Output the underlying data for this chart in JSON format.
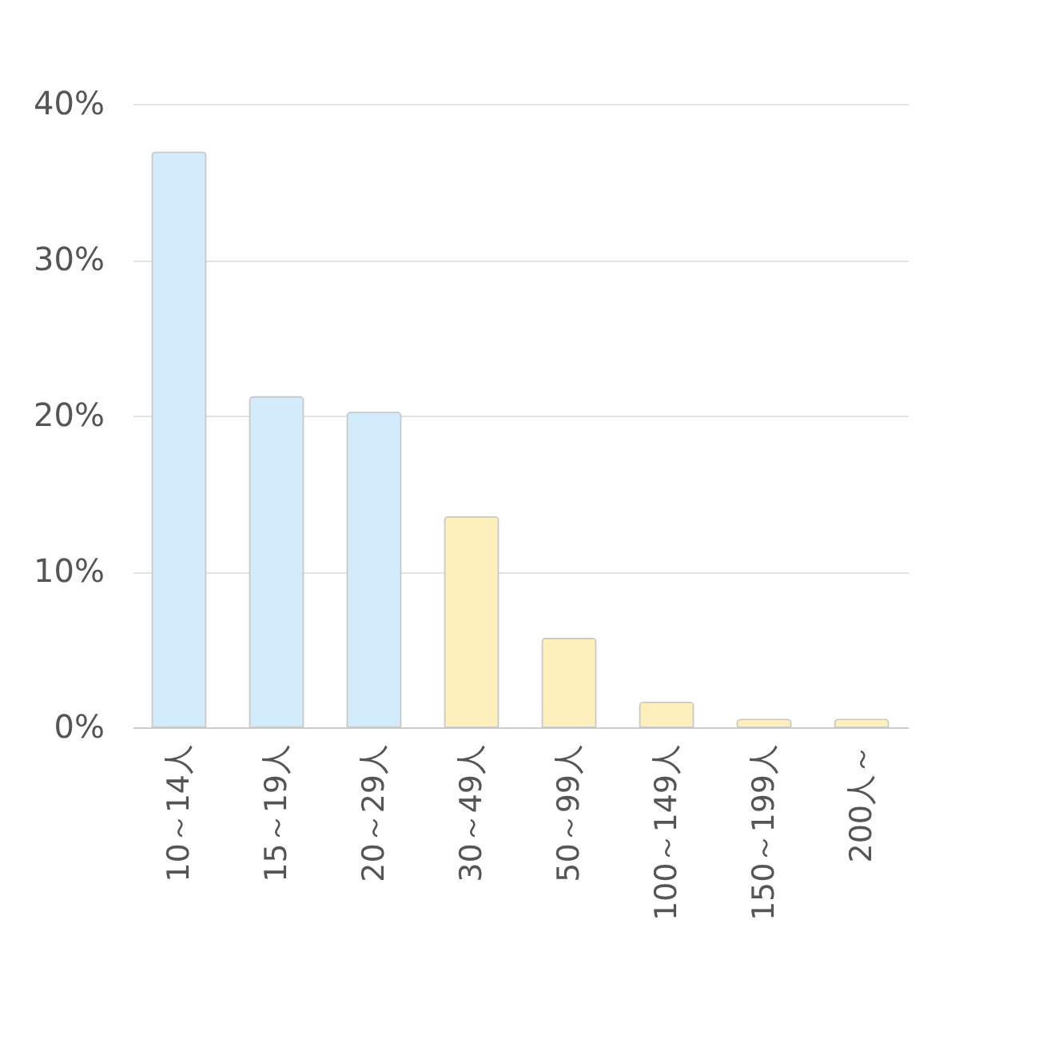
{
  "chart_data": {
    "type": "bar",
    "categories": [
      "10～14人",
      "15～19人",
      "20～29人",
      "30～49人",
      "50～99人",
      "100～149人",
      "150～199人",
      "200人～"
    ],
    "values": [
      36.9,
      21.2,
      20.2,
      13.5,
      5.7,
      1.6,
      0.5,
      0.5
    ],
    "colors": [
      "#d3ecfb",
      "#d3ecfb",
      "#d3ecfb",
      "#fdf0bd",
      "#fdf0bd",
      "#fdf0bd",
      "#fdf0bd",
      "#fdf0bd"
    ],
    "ylim": [
      0,
      40
    ],
    "yticks": [
      {
        "value": 0,
        "label": "0%"
      },
      {
        "value": 10,
        "label": "10%"
      },
      {
        "value": 20,
        "label": "20%"
      },
      {
        "value": 30,
        "label": "30%"
      },
      {
        "value": 40,
        "label": "40%"
      }
    ],
    "grid": "y"
  }
}
